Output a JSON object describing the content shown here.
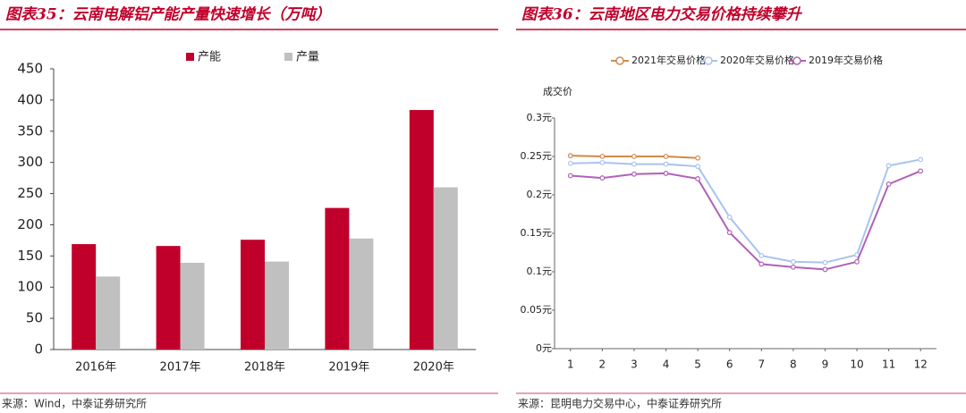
{
  "chart_data": [
    {
      "type": "bar",
      "title": "图表35：云南电解铝产能产量快速增长（万吨）",
      "source": "来源：Wind，中泰证券研究所",
      "categories": [
        "2016年",
        "2017年",
        "2018年",
        "2019年",
        "2020年"
      ],
      "series": [
        {
          "name": "产能",
          "color": "#c0002b",
          "values": [
            169,
            166,
            176,
            227,
            384
          ]
        },
        {
          "name": "产量",
          "color": "#c0c0c0",
          "values": [
            117,
            139,
            141,
            178,
            260
          ]
        }
      ],
      "ylim": [
        0,
        450
      ],
      "yticks": [
        0,
        50,
        100,
        150,
        200,
        250,
        300,
        350,
        400,
        450
      ],
      "grid": false
    },
    {
      "type": "line",
      "title": "图表36：云南地区电力交易价格持续攀升",
      "source": "来源：昆明电力交易中心，中泰证券研究所",
      "y_label": "成交价",
      "x": [
        1,
        2,
        3,
        4,
        5,
        6,
        7,
        8,
        9,
        10,
        11,
        12
      ],
      "series": [
        {
          "name": "2021年交易价格",
          "color": "#d08a4a",
          "values": [
            0.251,
            0.25,
            0.25,
            0.25,
            0.248,
            null,
            null,
            null,
            null,
            null,
            null,
            null
          ]
        },
        {
          "name": "2020年交易价格",
          "color": "#a9c3ef",
          "values": [
            0.241,
            0.242,
            0.24,
            0.24,
            0.237,
            0.171,
            0.121,
            0.113,
            0.112,
            0.122,
            0.238,
            0.246
          ]
        },
        {
          "name": "2019年交易价格",
          "color": "#b060b8",
          "values": [
            0.225,
            0.222,
            0.227,
            0.228,
            0.221,
            0.151,
            0.11,
            0.106,
            0.103,
            0.113,
            0.214,
            0.231
          ]
        }
      ],
      "xlim": [
        0.5,
        12.5
      ],
      "xticks": [
        1,
        2,
        3,
        4,
        5,
        6,
        7,
        8,
        9,
        10,
        11,
        12
      ],
      "ylim": [
        0,
        0.3
      ],
      "yticks": [
        {
          "value": 0,
          "label": "0元"
        },
        {
          "value": 0.05,
          "label": "0.05元"
        },
        {
          "value": 0.1,
          "label": "0.1元"
        },
        {
          "value": 0.15,
          "label": "0.15元"
        },
        {
          "value": 0.2,
          "label": "0.2元"
        },
        {
          "value": 0.25,
          "label": "0.25元"
        },
        {
          "value": 0.3,
          "label": "0.3元"
        }
      ],
      "grid": false
    }
  ]
}
